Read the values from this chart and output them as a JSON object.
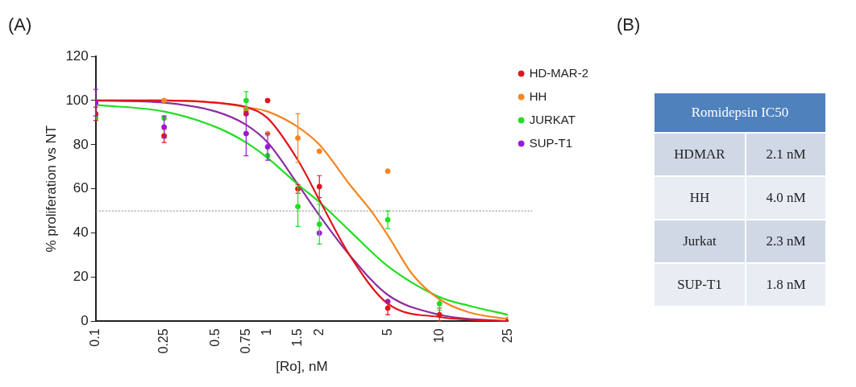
{
  "chart_data": [
    {
      "type": "scatter",
      "title": "(A)",
      "xlabel": "[Ro], nM",
      "ylabel": "% proliferation vs NT",
      "log": "x",
      "xlim": [
        0.1,
        25
      ],
      "xticks": [
        0.1,
        0.25,
        0.5,
        0.75,
        1,
        1.5,
        2,
        5,
        10,
        25
      ],
      "ylim": [
        0,
        120
      ],
      "yticks": [
        0,
        20,
        40,
        60,
        80,
        100,
        120
      ],
      "grid": false,
      "legend": "top right",
      "ref_lines": [
        {
          "axis": "y",
          "value": 50,
          "color": "#808080",
          "line_style": "dotted"
        }
      ],
      "series": [
        {
          "name": "HD-MAR-2",
          "color": "#e0151b",
          "x": [
            0.1,
            0.25,
            0.75,
            1,
            1.5,
            2,
            5,
            10,
            25
          ],
          "values": [
            94,
            84,
            94,
            100,
            60,
            61,
            6,
            3,
            0
          ],
          "errors": [
            3,
            3,
            null,
            null,
            2,
            5,
            3,
            3,
            null
          ],
          "marker": "circle"
        },
        {
          "name": "HH",
          "color": "#f5861f",
          "x": [
            0.25,
            0.75,
            1,
            1.5,
            2,
            5,
            10,
            25
          ],
          "values": [
            100,
            96,
            85,
            83,
            77,
            68,
            null,
            1
          ],
          "errors": [
            null,
            null,
            null,
            11,
            null,
            null,
            null,
            null
          ],
          "marker": "circle"
        },
        {
          "name": "JURKAT",
          "color": "#22dd22",
          "x": [
            0.1,
            0.25,
            0.75,
            1,
            1.5,
            2,
            5,
            10
          ],
          "values": [
            92,
            92,
            100,
            75,
            52,
            44,
            46,
            8
          ],
          "errors": [
            null,
            null,
            4,
            null,
            9,
            9,
            4,
            3
          ],
          "marker": "circle"
        },
        {
          "name": "SUP-T1",
          "color": "#9b19d6",
          "x": [
            0.1,
            0.25,
            0.75,
            1,
            1.5,
            2,
            5,
            10,
            25
          ],
          "values": [
            99,
            88,
            85,
            79,
            null,
            40,
            9,
            null,
            0
          ],
          "errors": [
            6,
            5,
            10,
            6,
            null,
            null,
            null,
            null,
            null
          ],
          "marker": "circle"
        },
        {
          "type": "line",
          "marker": "none",
          "color": "#e0151b",
          "x": [
            0.1,
            0.25,
            0.5,
            0.75,
            1,
            1.5,
            2,
            3,
            5,
            10,
            25
          ],
          "values": [
            100,
            100,
            99,
            97,
            92,
            73,
            55,
            30,
            8,
            2,
            0
          ]
        },
        {
          "type": "line",
          "marker": "none",
          "color": "#f5861f",
          "x": [
            0.1,
            0.25,
            0.5,
            0.75,
            1,
            1.5,
            2,
            3,
            4,
            5,
            7,
            10,
            15,
            25
          ],
          "values": [
            100,
            100,
            99,
            97,
            95,
            88,
            80,
            62,
            50,
            39,
            21,
            10,
            4,
            1
          ]
        },
        {
          "type": "line",
          "marker": "none",
          "color": "#22dd22",
          "x": [
            0.1,
            0.25,
            0.5,
            0.75,
            1,
            1.5,
            2,
            3,
            5,
            10,
            15,
            25
          ],
          "values": [
            98,
            95,
            88,
            81,
            74,
            62,
            54,
            41,
            25,
            11,
            7,
            3
          ]
        },
        {
          "type": "line",
          "marker": "none",
          "color": "#8b2fa0",
          "x": [
            0.1,
            0.25,
            0.5,
            0.75,
            1,
            1.5,
            2,
            3,
            5,
            10,
            25
          ],
          "values": [
            100,
            99,
            95,
            89,
            81,
            62,
            48,
            30,
            12,
            3,
            0
          ]
        }
      ]
    },
    {
      "type": "other",
      "title": "(B)",
      "subtitle": "Romidepsin IC50",
      "categories": [
        "HDMAR",
        "HH",
        "Jurkat",
        "SUP-T1"
      ],
      "value_labels": [
        "2.1 nM",
        "4.0 nM",
        "2.3 nM",
        "1.8 nM"
      ]
    }
  ]
}
